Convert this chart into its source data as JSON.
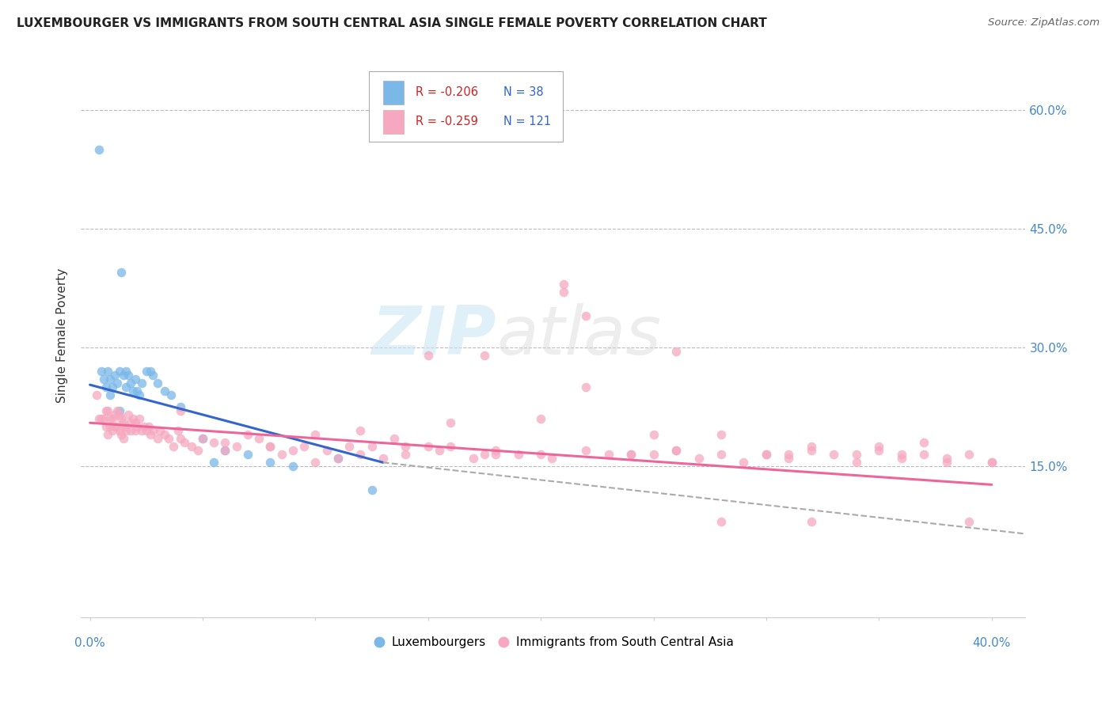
{
  "title": "LUXEMBOURGER VS IMMIGRANTS FROM SOUTH CENTRAL ASIA SINGLE FEMALE POVERTY CORRELATION CHART",
  "source": "Source: ZipAtlas.com",
  "ylabel": "Single Female Poverty",
  "blue_color": "#7ab8e8",
  "pink_color": "#f5a8c0",
  "line_blue": "#3366cc",
  "line_pink": "#ee6699",
  "line_dash": "#aaaaaa",
  "ytick_vals": [
    0.15,
    0.3,
    0.45,
    0.6
  ],
  "ytick_labels": [
    "15.0%",
    "30.0%",
    "45.0%",
    "60.0%"
  ],
  "xlim": [
    -0.004,
    0.415
  ],
  "ylim": [
    -0.04,
    0.67
  ],
  "blue_line": [
    [
      0.0,
      0.253
    ],
    [
      0.13,
      0.155
    ]
  ],
  "pink_line": [
    [
      0.0,
      0.205
    ],
    [
      0.4,
      0.127
    ]
  ],
  "dash_line": [
    [
      0.13,
      0.155
    ],
    [
      0.415,
      0.065
    ]
  ],
  "lux_x": [
    0.004,
    0.005,
    0.006,
    0.007,
    0.008,
    0.009,
    0.009,
    0.01,
    0.011,
    0.012,
    0.013,
    0.013,
    0.014,
    0.015,
    0.016,
    0.016,
    0.017,
    0.018,
    0.019,
    0.02,
    0.021,
    0.022,
    0.023,
    0.025,
    0.027,
    0.028,
    0.03,
    0.033,
    0.036,
    0.04,
    0.05,
    0.055,
    0.06,
    0.07,
    0.08,
    0.09,
    0.11,
    0.125
  ],
  "lux_y": [
    0.55,
    0.27,
    0.26,
    0.25,
    0.27,
    0.24,
    0.26,
    0.25,
    0.265,
    0.255,
    0.22,
    0.27,
    0.395,
    0.265,
    0.25,
    0.27,
    0.265,
    0.255,
    0.245,
    0.26,
    0.245,
    0.24,
    0.255,
    0.27,
    0.27,
    0.265,
    0.255,
    0.245,
    0.24,
    0.225,
    0.185,
    0.155,
    0.17,
    0.165,
    0.155,
    0.15,
    0.16,
    0.12
  ],
  "imm_x": [
    0.003,
    0.004,
    0.005,
    0.006,
    0.007,
    0.007,
    0.008,
    0.008,
    0.009,
    0.009,
    0.01,
    0.01,
    0.011,
    0.011,
    0.012,
    0.012,
    0.013,
    0.013,
    0.014,
    0.014,
    0.015,
    0.015,
    0.016,
    0.016,
    0.017,
    0.018,
    0.018,
    0.019,
    0.02,
    0.02,
    0.021,
    0.022,
    0.023,
    0.024,
    0.025,
    0.026,
    0.027,
    0.028,
    0.03,
    0.031,
    0.033,
    0.035,
    0.037,
    0.039,
    0.04,
    0.042,
    0.045,
    0.048,
    0.05,
    0.055,
    0.06,
    0.065,
    0.07,
    0.075,
    0.08,
    0.085,
    0.09,
    0.095,
    0.1,
    0.105,
    0.11,
    0.115,
    0.12,
    0.125,
    0.13,
    0.135,
    0.14,
    0.15,
    0.155,
    0.16,
    0.17,
    0.175,
    0.18,
    0.19,
    0.2,
    0.205,
    0.21,
    0.22,
    0.23,
    0.24,
    0.25,
    0.26,
    0.27,
    0.28,
    0.29,
    0.3,
    0.31,
    0.32,
    0.33,
    0.34,
    0.35,
    0.36,
    0.37,
    0.38,
    0.39,
    0.4,
    0.15,
    0.175,
    0.22,
    0.25,
    0.28,
    0.32,
    0.35,
    0.37,
    0.39,
    0.04,
    0.06,
    0.08,
    0.1,
    0.12,
    0.14,
    0.16,
    0.18,
    0.2,
    0.22,
    0.24,
    0.26,
    0.28,
    0.3,
    0.32,
    0.34,
    0.36,
    0.38,
    0.4,
    0.21,
    0.26,
    0.31
  ],
  "imm_y": [
    0.24,
    0.21,
    0.21,
    0.21,
    0.2,
    0.22,
    0.19,
    0.22,
    0.2,
    0.21,
    0.195,
    0.21,
    0.2,
    0.215,
    0.2,
    0.22,
    0.195,
    0.215,
    0.19,
    0.21,
    0.185,
    0.205,
    0.195,
    0.2,
    0.215,
    0.205,
    0.195,
    0.21,
    0.205,
    0.195,
    0.2,
    0.21,
    0.195,
    0.2,
    0.195,
    0.2,
    0.19,
    0.195,
    0.185,
    0.195,
    0.19,
    0.185,
    0.175,
    0.195,
    0.185,
    0.18,
    0.175,
    0.17,
    0.185,
    0.18,
    0.18,
    0.175,
    0.19,
    0.185,
    0.175,
    0.165,
    0.17,
    0.175,
    0.155,
    0.17,
    0.16,
    0.175,
    0.165,
    0.175,
    0.16,
    0.185,
    0.165,
    0.175,
    0.17,
    0.205,
    0.16,
    0.165,
    0.17,
    0.165,
    0.165,
    0.16,
    0.37,
    0.17,
    0.165,
    0.165,
    0.165,
    0.17,
    0.16,
    0.165,
    0.155,
    0.165,
    0.16,
    0.17,
    0.165,
    0.155,
    0.175,
    0.16,
    0.165,
    0.155,
    0.165,
    0.155,
    0.29,
    0.29,
    0.25,
    0.19,
    0.08,
    0.08,
    0.17,
    0.18,
    0.08,
    0.22,
    0.17,
    0.175,
    0.19,
    0.195,
    0.175,
    0.175,
    0.165,
    0.21,
    0.34,
    0.165,
    0.17,
    0.19,
    0.165,
    0.175,
    0.165,
    0.165,
    0.16,
    0.155,
    0.38,
    0.295,
    0.165
  ]
}
